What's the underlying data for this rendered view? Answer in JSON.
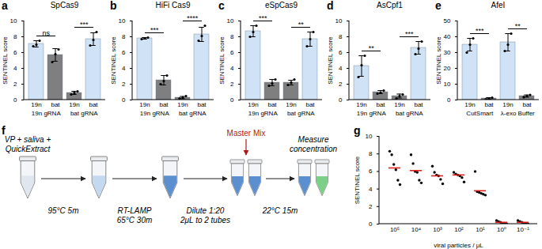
{
  "chart_data": [
    {
      "panel": "a",
      "type": "bar",
      "title": "SpCas9",
      "categories": [
        "19n",
        "bat",
        "19n",
        "bat"
      ],
      "groups": [
        "19n gRNA",
        "bat gRNA"
      ],
      "values": [
        7.1,
        5.7,
        0.9,
        7.7
      ],
      "errors": [
        0.4,
        0.8,
        0.2,
        0.8
      ],
      "points": [
        [
          6.8,
          7.0,
          7.5
        ],
        [
          4.8,
          5.8,
          6.4
        ],
        [
          0.7,
          0.9,
          1.1
        ],
        [
          6.9,
          7.6,
          8.6
        ]
      ],
      "colors": [
        "#cfe2f6",
        "#7f7f7f",
        "#7f7f7f",
        "#cfe2f6"
      ],
      "significance": [
        "ns",
        "***"
      ],
      "y_label": "SENTINEL score",
      "ylim": [
        0,
        10
      ],
      "yticks": [
        0,
        2,
        4,
        6,
        8,
        10
      ]
    },
    {
      "panel": "b",
      "type": "bar",
      "title": "HiFi Cas9",
      "categories": [
        "19n",
        "bat",
        "19n",
        "bat"
      ],
      "groups": [
        "19n gRNA",
        "bat gRNA"
      ],
      "values": [
        7.8,
        2.5,
        0.3,
        8.3
      ],
      "errors": [
        0.1,
        0.6,
        0.15,
        0.9
      ],
      "points": [
        [
          7.7,
          7.8,
          7.9
        ],
        [
          2.0,
          2.4,
          3.1
        ],
        [
          0.2,
          0.3,
          0.5
        ],
        [
          7.5,
          8.1,
          9.4
        ]
      ],
      "colors": [
        "#cfe2f6",
        "#7f7f7f",
        "#7f7f7f",
        "#cfe2f6"
      ],
      "significance": [
        "***",
        "****"
      ],
      "y_label": "SENTINEL score",
      "ylim": [
        0,
        10
      ],
      "yticks": [
        0,
        2,
        4,
        6,
        8,
        10
      ]
    },
    {
      "panel": "c",
      "type": "bar",
      "title": "eSpCas9",
      "categories": [
        "19n",
        "bat",
        "19n",
        "bat"
      ],
      "groups": [
        "19n gRNA",
        "bat gRNA"
      ],
      "values": [
        8.7,
        2.2,
        2.2,
        7.7
      ],
      "errors": [
        0.7,
        0.4,
        0.3,
        0.9
      ],
      "points": [
        [
          8.0,
          8.6,
          9.4
        ],
        [
          1.8,
          2.1,
          2.6
        ],
        [
          1.9,
          2.2,
          2.6
        ],
        [
          6.8,
          7.7,
          8.6
        ]
      ],
      "colors": [
        "#cfe2f6",
        "#7f7f7f",
        "#7f7f7f",
        "#cfe2f6"
      ],
      "significance": [
        "***",
        "**"
      ],
      "y_label": "SENTINEL score",
      "ylim": [
        0,
        10
      ],
      "yticks": [
        0,
        2,
        4,
        6,
        8,
        10
      ]
    },
    {
      "panel": "d",
      "type": "bar",
      "title": "AsCpf1",
      "categories": [
        "19n",
        "bat",
        "19n",
        "bat"
      ],
      "groups": [
        "19n gRNA",
        "bat gRNA"
      ],
      "values": [
        4.3,
        1.0,
        0.5,
        6.6
      ],
      "errors": [
        1.3,
        0.2,
        0.25,
        0.8
      ],
      "points": [
        [
          2.9,
          4.4,
          5.6
        ],
        [
          0.8,
          0.9,
          1.2
        ],
        [
          0.2,
          0.5,
          0.7
        ],
        [
          5.8,
          6.5,
          7.4
        ]
      ],
      "colors": [
        "#cfe2f6",
        "#7f7f7f",
        "#7f7f7f",
        "#cfe2f6"
      ],
      "significance": [
        "**",
        "***"
      ],
      "y_label": "SENTINEL score",
      "ylim": [
        0,
        10
      ],
      "yticks": [
        0,
        2,
        4,
        6,
        8,
        10
      ]
    },
    {
      "panel": "e",
      "type": "bar",
      "title": "AfeI",
      "categories": [
        "19n",
        "bat",
        "19n",
        "bat"
      ],
      "groups": [
        "CutSmart",
        "λ-exo Buffer"
      ],
      "values": [
        35,
        1,
        36.5,
        2.5
      ],
      "errors": [
        4,
        0.5,
        5.5,
        0.7
      ],
      "points": [
        [
          30,
          35,
          39
        ],
        [
          0.5,
          1,
          1.5
        ],
        [
          31,
          35,
          42
        ],
        [
          1.8,
          2.5,
          3.2
        ]
      ],
      "colors": [
        "#cfe2f6",
        "#7f7f7f",
        "#cfe2f6",
        "#7f7f7f"
      ],
      "significance": [
        "***",
        "**"
      ],
      "y_label": "SENTINEL score",
      "ylim": [
        0,
        50
      ],
      "yticks": [
        0,
        10,
        20,
        30,
        40,
        50
      ]
    },
    {
      "panel": "g",
      "type": "scatter",
      "categories": [
        "10⁵",
        "10⁴",
        "10³",
        "10²",
        "10¹",
        "10⁰",
        "10⁻¹"
      ],
      "points": [
        [
          8.3,
          7.9,
          6.8,
          6.2,
          5.0,
          4.5
        ],
        [
          7.9,
          6.9,
          6.0,
          5.9,
          5.0,
          4.7
        ],
        [
          6.6,
          5.9,
          5.6,
          5.5,
          5.1,
          4.6
        ],
        [
          5.9,
          5.7,
          5.6,
          5.5,
          5.3,
          4.8
        ],
        [
          6.0,
          3.7,
          3.6,
          3.5,
          3.4,
          3.3
        ],
        [
          0.4,
          0.3,
          0.2,
          0.1,
          0.1,
          0.0
        ],
        [
          0.4,
          0.3,
          0.2,
          0.1,
          0.0,
          0.0
        ]
      ],
      "means": [
        6.4,
        6.1,
        5.5,
        5.6,
        3.8,
        0.2,
        0.2
      ],
      "x_label": "viral particles / μL",
      "y_label": "SENTINEL score",
      "ylim": [
        0,
        10
      ],
      "yticks": [
        0,
        2,
        4,
        6,
        8,
        10
      ]
    }
  ],
  "diagram": {
    "panel": "f",
    "start": [
      "VP + saliva +",
      "QuickExtract"
    ],
    "arrows": [
      [
        "95°C 5m"
      ],
      [
        "RT-LAMP",
        "65°C 30m"
      ],
      [
        "Dilute 1:20",
        "2μL to 2 tubes"
      ],
      [
        "22°C 15m"
      ]
    ],
    "reagent": "Master Mix",
    "end": [
      "Measure",
      "concentration"
    ]
  }
}
